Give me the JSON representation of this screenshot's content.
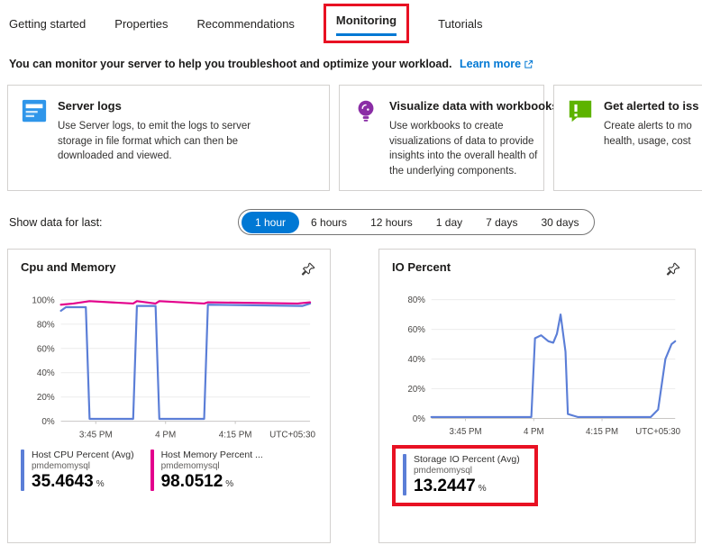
{
  "colors": {
    "accent": "#0078d4",
    "highlight_red": "#e81123",
    "line_blue": "#5b7ed7",
    "line_magenta": "#e3008c",
    "icon_blue": "#2f96ea",
    "icon_purple": "#8a2da5",
    "icon_green": "#5db300"
  },
  "icons": {
    "pin": "pin-icon",
    "external_link": "external-link-icon"
  },
  "tabs": {
    "items": [
      {
        "label": "Getting started"
      },
      {
        "label": "Properties"
      },
      {
        "label": "Recommendations"
      },
      {
        "label": "Monitoring"
      },
      {
        "label": "Tutorials"
      }
    ],
    "active": "Monitoring"
  },
  "intro": {
    "text": "You can monitor your server to help you troubleshoot and optimize your workload.",
    "link_label": "Learn more"
  },
  "cards": [
    {
      "title": "Server logs",
      "description": "Use Server logs, to emit the logs to server storage in file format which can then be downloaded and viewed.",
      "icon": "server-logs-icon"
    },
    {
      "title": "Visualize data with workbooks",
      "description": "Use workbooks to create visualizations of data to provide insights into the overall health of the underlying components.",
      "icon": "workbooks-icon"
    },
    {
      "title": "Get alerted to iss",
      "description": "Create alerts to mo health, usage, cost",
      "description_lines": [
        "Create alerts to mo",
        "health, usage, cost"
      ],
      "icon": "alert-icon"
    }
  ],
  "time_range": {
    "label": "Show data for last:",
    "options": [
      "1 hour",
      "6 hours",
      "12 hours",
      "1 day",
      "7 days",
      "30 days"
    ],
    "selected": "1 hour"
  },
  "chart_data": [
    {
      "type": "line",
      "title": "Cpu and Memory",
      "ylim": [
        0,
        100
      ],
      "yticks": [
        0,
        20,
        40,
        60,
        80,
        100
      ],
      "xticks": [
        {
          "pos": 0.14,
          "label": "3:45 PM"
        },
        {
          "pos": 0.42,
          "label": "4 PM"
        },
        {
          "pos": 0.7,
          "label": "4:15 PM"
        }
      ],
      "x_right_label": "UTC+05:30",
      "grid": true,
      "legend_position": "bottom",
      "series": [
        {
          "name": "Host CPU Percent (Avg)",
          "resource": "pmdemomysql",
          "value": "35.4643",
          "unit": "%",
          "color": "#5b7ed7",
          "points": [
            [
              0,
              91
            ],
            [
              0.02,
              94
            ],
            [
              0.1,
              94
            ],
            [
              0.115,
              2
            ],
            [
              0.29,
              2
            ],
            [
              0.305,
              95
            ],
            [
              0.38,
              95
            ],
            [
              0.395,
              2
            ],
            [
              0.575,
              2
            ],
            [
              0.59,
              96
            ],
            [
              0.97,
              95
            ],
            [
              1,
              97
            ]
          ]
        },
        {
          "name": "Host Memory Percent ...",
          "resource": "pmdemomysql",
          "value": "98.0512",
          "unit": "%",
          "color": "#e3008c",
          "points": [
            [
              0,
              96
            ],
            [
              0.05,
              97
            ],
            [
              0.115,
              99
            ],
            [
              0.29,
              97
            ],
            [
              0.305,
              99
            ],
            [
              0.38,
              97
            ],
            [
              0.395,
              99
            ],
            [
              0.575,
              97
            ],
            [
              0.59,
              98
            ],
            [
              0.95,
              97
            ],
            [
              1,
              98
            ]
          ]
        }
      ]
    },
    {
      "type": "line",
      "title": "IO Percent",
      "ylim": [
        0,
        80
      ],
      "yticks": [
        0,
        20,
        40,
        60,
        80
      ],
      "xticks": [
        {
          "pos": 0.14,
          "label": "3:45 PM"
        },
        {
          "pos": 0.42,
          "label": "4 PM"
        },
        {
          "pos": 0.7,
          "label": "4:15 PM"
        }
      ],
      "x_right_label": "UTC+05:30",
      "grid": true,
      "legend_position": "bottom",
      "highlighted_legend": true,
      "series": [
        {
          "name": "Storage IO Percent (Avg)",
          "resource": "pmdemomysql",
          "value": "13.2447",
          "unit": "%",
          "color": "#5b7ed7",
          "points": [
            [
              0,
              1
            ],
            [
              0.41,
              1
            ],
            [
              0.425,
              54
            ],
            [
              0.45,
              56
            ],
            [
              0.48,
              52
            ],
            [
              0.5,
              51
            ],
            [
              0.515,
              57
            ],
            [
              0.53,
              70
            ],
            [
              0.55,
              45
            ],
            [
              0.56,
              3
            ],
            [
              0.6,
              1
            ],
            [
              0.9,
              1
            ],
            [
              0.93,
              6
            ],
            [
              0.96,
              40
            ],
            [
              0.985,
              50
            ],
            [
              1,
              52
            ]
          ]
        }
      ]
    }
  ]
}
